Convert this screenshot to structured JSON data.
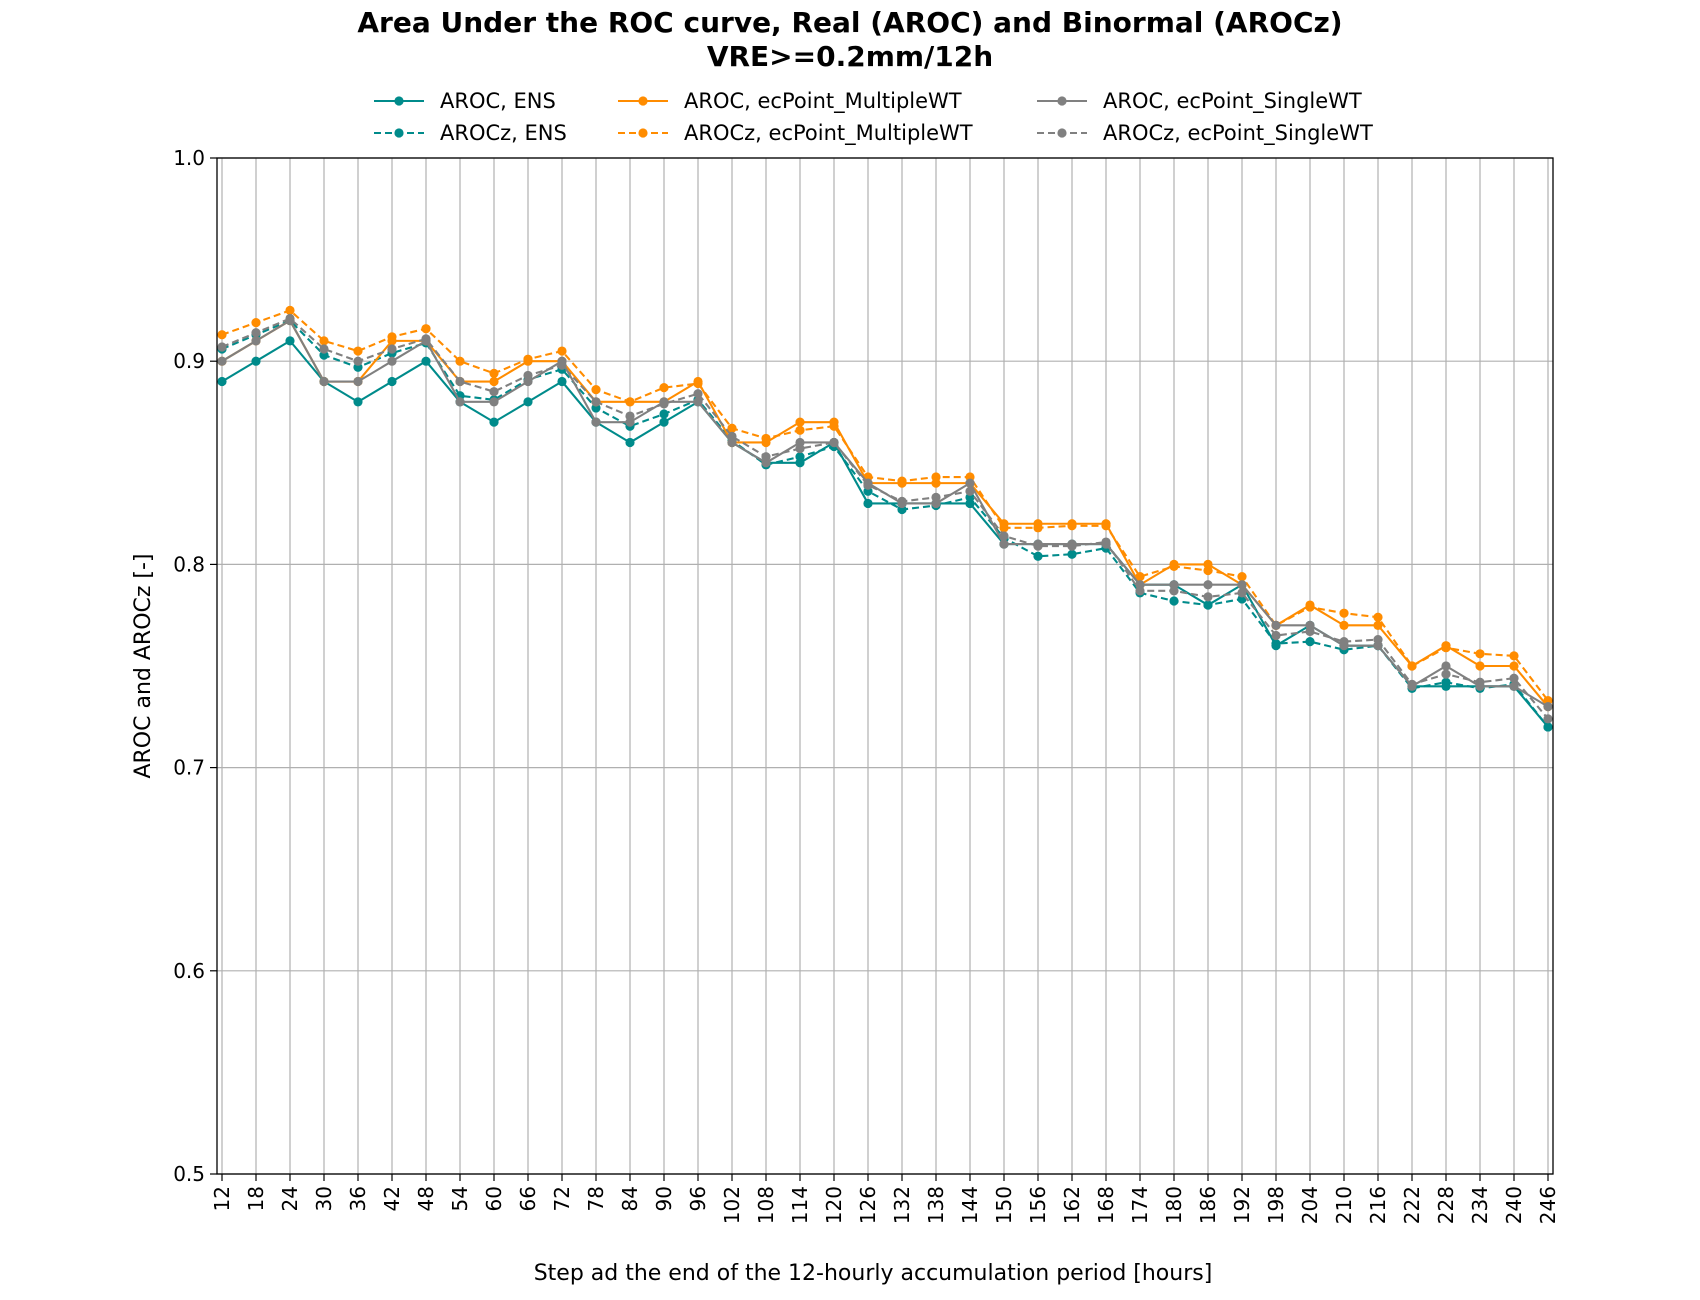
{
  "chart_data": {
    "type": "line",
    "title": "Area Under the ROC curve, Real (AROC) and Binormal (AROCz)",
    "subtitle": "VRE>=0.2mm/12h",
    "xlabel": "Step ad the end of the 12-hourly accumulation period [hours]",
    "ylabel": "AROC and AROCz [-]",
    "ylim": [
      0.5,
      1.0
    ],
    "yticks": [
      "0.5",
      "0.6",
      "0.7",
      "0.8",
      "0.9",
      "1.0"
    ],
    "grid": true,
    "legend_position": "top-center",
    "x": [
      12,
      18,
      24,
      30,
      36,
      42,
      48,
      54,
      60,
      66,
      72,
      78,
      84,
      90,
      96,
      102,
      108,
      114,
      120,
      126,
      132,
      138,
      144,
      150,
      156,
      162,
      168,
      174,
      180,
      186,
      192,
      198,
      204,
      210,
      216,
      222,
      228,
      234,
      240,
      246
    ],
    "series": [
      {
        "name": "AROC, ENS",
        "color": "#008b8b",
        "dash": "solid",
        "values": [
          0.89,
          0.9,
          0.91,
          0.89,
          0.88,
          0.89,
          0.9,
          0.88,
          0.87,
          0.88,
          0.89,
          0.87,
          0.86,
          0.87,
          0.88,
          0.86,
          0.85,
          0.85,
          0.86,
          0.83,
          0.83,
          0.83,
          0.83,
          0.81,
          0.81,
          0.81,
          0.81,
          0.79,
          0.79,
          0.78,
          0.79,
          0.76,
          0.77,
          0.76,
          0.76,
          0.74,
          0.74,
          0.74,
          0.74,
          0.72
        ]
      },
      {
        "name": "AROCz, ENS",
        "color": "#008b8b",
        "dash": "dashed",
        "values": [
          0.906,
          0.913,
          0.92,
          0.903,
          0.897,
          0.904,
          0.909,
          0.883,
          0.881,
          0.891,
          0.896,
          0.877,
          0.868,
          0.874,
          0.881,
          0.861,
          0.849,
          0.853,
          0.858,
          0.836,
          0.827,
          0.829,
          0.833,
          0.813,
          0.804,
          0.805,
          0.808,
          0.786,
          0.782,
          0.78,
          0.783,
          0.761,
          0.762,
          0.758,
          0.76,
          0.739,
          0.742,
          0.739,
          0.741,
          0.72
        ]
      },
      {
        "name": "AROC, ecPoint_MultipleWT",
        "color": "#ff8c00",
        "dash": "solid",
        "values": [
          0.9,
          0.91,
          0.92,
          0.89,
          0.89,
          0.91,
          0.91,
          0.89,
          0.89,
          0.9,
          0.9,
          0.88,
          0.88,
          0.88,
          0.89,
          0.86,
          0.86,
          0.87,
          0.87,
          0.84,
          0.84,
          0.84,
          0.84,
          0.82,
          0.82,
          0.82,
          0.82,
          0.79,
          0.8,
          0.8,
          0.79,
          0.77,
          0.78,
          0.77,
          0.77,
          0.75,
          0.76,
          0.75,
          0.75,
          0.73
        ]
      },
      {
        "name": "AROCz, ecPoint_MultipleWT",
        "color": "#ff8c00",
        "dash": "dashed",
        "values": [
          0.913,
          0.919,
          0.925,
          0.91,
          0.905,
          0.912,
          0.916,
          0.9,
          0.894,
          0.901,
          0.905,
          0.886,
          0.88,
          0.887,
          0.889,
          0.867,
          0.862,
          0.866,
          0.868,
          0.843,
          0.841,
          0.843,
          0.843,
          0.818,
          0.818,
          0.819,
          0.819,
          0.794,
          0.799,
          0.797,
          0.794,
          0.77,
          0.779,
          0.776,
          0.774,
          0.75,
          0.759,
          0.756,
          0.755,
          0.733
        ]
      },
      {
        "name": "AROC, ecPoint_SingleWT",
        "color": "#808080",
        "dash": "solid",
        "values": [
          0.9,
          0.91,
          0.92,
          0.89,
          0.89,
          0.9,
          0.91,
          0.88,
          0.88,
          0.89,
          0.9,
          0.87,
          0.87,
          0.88,
          0.88,
          0.86,
          0.85,
          0.86,
          0.86,
          0.84,
          0.83,
          0.83,
          0.84,
          0.81,
          0.81,
          0.81,
          0.81,
          0.79,
          0.79,
          0.79,
          0.79,
          0.77,
          0.77,
          0.76,
          0.76,
          0.74,
          0.75,
          0.74,
          0.74,
          0.73
        ]
      },
      {
        "name": "AROCz, ecPoint_SingleWT",
        "color": "#808080",
        "dash": "dashed",
        "values": [
          0.907,
          0.914,
          0.921,
          0.906,
          0.9,
          0.906,
          0.911,
          0.89,
          0.885,
          0.893,
          0.898,
          0.88,
          0.873,
          0.879,
          0.884,
          0.863,
          0.853,
          0.857,
          0.86,
          0.839,
          0.831,
          0.833,
          0.836,
          0.814,
          0.809,
          0.809,
          0.811,
          0.787,
          0.787,
          0.784,
          0.786,
          0.765,
          0.767,
          0.762,
          0.763,
          0.741,
          0.746,
          0.742,
          0.744,
          0.724
        ]
      }
    ]
  }
}
